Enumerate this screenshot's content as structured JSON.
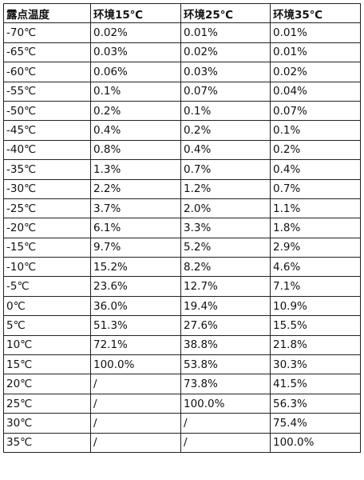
{
  "table": {
    "header": [
      "露点温度",
      "环境15℃",
      "环境25℃",
      "环境35℃"
    ],
    "rows": [
      [
        "-70℃",
        "0.02%",
        "0.01%",
        "0.01%"
      ],
      [
        "-65℃",
        "0.03%",
        "0.02%",
        "0.01%"
      ],
      [
        "-60℃",
        "0.06%",
        "0.03%",
        "0.02%"
      ],
      [
        "-55℃",
        "0.1%",
        "0.07%",
        "0.04%"
      ],
      [
        "-50℃",
        "0.2%",
        "0.1%",
        "0.07%"
      ],
      [
        "-45℃",
        "0.4%",
        "0.2%",
        "0.1%"
      ],
      [
        "-40℃",
        "0.8%",
        "0.4%",
        "0.2%"
      ],
      [
        "-35℃",
        "1.3%",
        "0.7%",
        "0.4%"
      ],
      [
        "-30℃",
        "2.2%",
        "1.2%",
        "0.7%"
      ],
      [
        "-25℃",
        "3.7%",
        "2.0%",
        "1.1%"
      ],
      [
        "-20℃",
        "6.1%",
        "3.3%",
        "1.8%"
      ],
      [
        "-15℃",
        "9.7%",
        "5.2%",
        "2.9%"
      ],
      [
        "-10℃",
        "15.2%",
        "8.2%",
        "4.6%"
      ],
      [
        "-5℃",
        "23.6%",
        "12.7%",
        "7.1%"
      ],
      [
        "0℃",
        "36.0%",
        "19.4%",
        "10.9%"
      ],
      [
        "5℃",
        "51.3%",
        "27.6%",
        "15.5%"
      ],
      [
        "10℃",
        "72.1%",
        "38.8%",
        "21.8%"
      ],
      [
        "15℃",
        "100.0%",
        "53.8%",
        "30.3%"
      ],
      [
        "20℃",
        "/",
        "73.8%",
        "41.5%"
      ],
      [
        "25℃",
        "/",
        "100.0%",
        "56.3%"
      ],
      [
        "30℃",
        "/",
        "/",
        "75.4%"
      ],
      [
        "35℃",
        "/",
        "/",
        "100.0%"
      ]
    ]
  }
}
